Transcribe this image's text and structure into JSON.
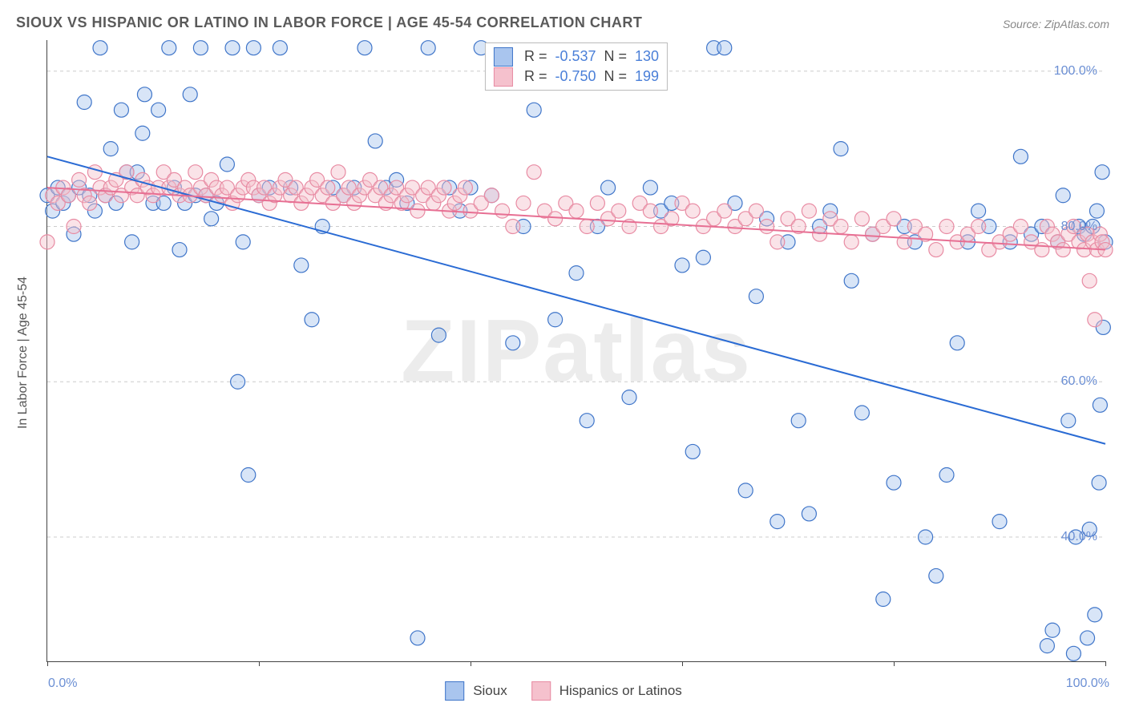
{
  "title": "SIOUX VS HISPANIC OR LATINO IN LABOR FORCE | AGE 45-54 CORRELATION CHART",
  "source_prefix": "Source: ",
  "source": "ZipAtlas.com",
  "yaxis_label": "In Labor Force | Age 45-54",
  "watermark_bold": "ZIP",
  "watermark_rest": "atlas",
  "chart": {
    "type": "scatter",
    "background_color": "#ffffff",
    "grid_color": "#cccccc",
    "grid_dash": "4,4",
    "axis_color": "#444444",
    "tick_label_color": "#6b8fd4",
    "tick_fontsize": 16,
    "title_fontsize": 18,
    "title_color": "#5a5a5a",
    "xlim": [
      0,
      100
    ],
    "ylim": [
      24,
      104
    ],
    "x_ticks": [
      0,
      20,
      40,
      60,
      80,
      100
    ],
    "x_tick_labels": [
      "0.0%",
      "",
      "",
      "",
      "",
      "100.0%"
    ],
    "y_gridlines": [
      40,
      60,
      80,
      100
    ],
    "y_tick_labels": [
      "40.0%",
      "60.0%",
      "80.0%",
      "100.0%"
    ],
    "marker_radius": 9,
    "marker_opacity": 0.45,
    "marker_stroke_width": 1.2,
    "line_width": 2,
    "series": [
      {
        "name": "Sioux",
        "fill_color": "#a9c5ee",
        "stroke_color": "#3f75c9",
        "line_color": "#2a6bd4",
        "R": "-0.537",
        "N": "130",
        "trend": {
          "x1": 0,
          "y1": 89,
          "x2": 100,
          "y2": 52
        },
        "points": [
          [
            0,
            84
          ],
          [
            0.5,
            82
          ],
          [
            1,
            85
          ],
          [
            1.5,
            83
          ],
          [
            2,
            84
          ],
          [
            2.5,
            79
          ],
          [
            3,
            85
          ],
          [
            3.5,
            96
          ],
          [
            4,
            84
          ],
          [
            4.5,
            82
          ],
          [
            5,
            103
          ],
          [
            5.5,
            84
          ],
          [
            6,
            90
          ],
          [
            6.5,
            83
          ],
          [
            7,
            95
          ],
          [
            7.5,
            87
          ],
          [
            8,
            78
          ],
          [
            8.5,
            87
          ],
          [
            9,
            92
          ],
          [
            9.2,
            97
          ],
          [
            10,
            83
          ],
          [
            10.5,
            95
          ],
          [
            11,
            83
          ],
          [
            11.5,
            103
          ],
          [
            12,
            85
          ],
          [
            12.5,
            77
          ],
          [
            13,
            83
          ],
          [
            13.5,
            97
          ],
          [
            14,
            84
          ],
          [
            14.5,
            103
          ],
          [
            15,
            84
          ],
          [
            15.5,
            81
          ],
          [
            16,
            83
          ],
          [
            17,
            88
          ],
          [
            17.5,
            103
          ],
          [
            18,
            60
          ],
          [
            18.5,
            78
          ],
          [
            19,
            48
          ],
          [
            19.5,
            103
          ],
          [
            20,
            84
          ],
          [
            21,
            85
          ],
          [
            22,
            103
          ],
          [
            23,
            85
          ],
          [
            24,
            75
          ],
          [
            25,
            68
          ],
          [
            26,
            80
          ],
          [
            27,
            85
          ],
          [
            28,
            84
          ],
          [
            29,
            85
          ],
          [
            30,
            103
          ],
          [
            31,
            91
          ],
          [
            32,
            85
          ],
          [
            33,
            86
          ],
          [
            34,
            83
          ],
          [
            35,
            27
          ],
          [
            36,
            103
          ],
          [
            37,
            66
          ],
          [
            38,
            85
          ],
          [
            39,
            82
          ],
          [
            40,
            85
          ],
          [
            41,
            103
          ],
          [
            42,
            84
          ],
          [
            44,
            65
          ],
          [
            45,
            80
          ],
          [
            46,
            95
          ],
          [
            48,
            68
          ],
          [
            50,
            74
          ],
          [
            51,
            55
          ],
          [
            52,
            80
          ],
          [
            53,
            85
          ],
          [
            55,
            58
          ],
          [
            57,
            85
          ],
          [
            58,
            82
          ],
          [
            59,
            83
          ],
          [
            60,
            75
          ],
          [
            61,
            51
          ],
          [
            62,
            76
          ],
          [
            63,
            103
          ],
          [
            64,
            103
          ],
          [
            65,
            83
          ],
          [
            66,
            46
          ],
          [
            67,
            71
          ],
          [
            68,
            81
          ],
          [
            69,
            42
          ],
          [
            70,
            78
          ],
          [
            71,
            55
          ],
          [
            72,
            43
          ],
          [
            73,
            80
          ],
          [
            74,
            82
          ],
          [
            75,
            90
          ],
          [
            76,
            73
          ],
          [
            77,
            56
          ],
          [
            78,
            79
          ],
          [
            79,
            32
          ],
          [
            80,
            47
          ],
          [
            81,
            80
          ],
          [
            82,
            78
          ],
          [
            83,
            40
          ],
          [
            84,
            35
          ],
          [
            85,
            48
          ],
          [
            86,
            65
          ],
          [
            87,
            78
          ],
          [
            88,
            82
          ],
          [
            89,
            80
          ],
          [
            90,
            42
          ],
          [
            91,
            78
          ],
          [
            92,
            89
          ],
          [
            93,
            79
          ],
          [
            94,
            80
          ],
          [
            94.5,
            26
          ],
          [
            95,
            28
          ],
          [
            95.5,
            78
          ],
          [
            96,
            84
          ],
          [
            96.5,
            55
          ],
          [
            97,
            25
          ],
          [
            97.2,
            40
          ],
          [
            97.5,
            80
          ],
          [
            98,
            79
          ],
          [
            98.3,
            27
          ],
          [
            98.5,
            41
          ],
          [
            98.8,
            80
          ],
          [
            99,
            30
          ],
          [
            99.2,
            82
          ],
          [
            99.4,
            47
          ],
          [
            99.5,
            57
          ],
          [
            99.7,
            87
          ],
          [
            99.8,
            67
          ],
          [
            100,
            78
          ]
        ]
      },
      {
        "name": "Hispanics or Latinos",
        "fill_color": "#f5c1cd",
        "stroke_color": "#e88ba3",
        "line_color": "#e76f93",
        "R": "-0.750",
        "N": "199",
        "trend": {
          "x1": 0,
          "y1": 85,
          "x2": 100,
          "y2": 77
        },
        "points": [
          [
            0,
            78
          ],
          [
            0.5,
            84
          ],
          [
            1,
            83
          ],
          [
            1.5,
            85
          ],
          [
            2,
            84
          ],
          [
            2.5,
            80
          ],
          [
            3,
            86
          ],
          [
            3.5,
            84
          ],
          [
            4,
            83
          ],
          [
            4.5,
            87
          ],
          [
            5,
            85
          ],
          [
            5.5,
            84
          ],
          [
            6,
            85
          ],
          [
            6.5,
            86
          ],
          [
            7,
            84
          ],
          [
            7.5,
            87
          ],
          [
            8,
            85
          ],
          [
            8.5,
            84
          ],
          [
            9,
            86
          ],
          [
            9.5,
            85
          ],
          [
            10,
            84
          ],
          [
            10.5,
            85
          ],
          [
            11,
            87
          ],
          [
            11.5,
            85
          ],
          [
            12,
            86
          ],
          [
            12.5,
            84
          ],
          [
            13,
            85
          ],
          [
            13.5,
            84
          ],
          [
            14,
            87
          ],
          [
            14.5,
            85
          ],
          [
            15,
            84
          ],
          [
            15.5,
            86
          ],
          [
            16,
            85
          ],
          [
            16.5,
            84
          ],
          [
            17,
            85
          ],
          [
            17.5,
            83
          ],
          [
            18,
            84
          ],
          [
            18.5,
            85
          ],
          [
            19,
            86
          ],
          [
            19.5,
            85
          ],
          [
            20,
            84
          ],
          [
            20.5,
            85
          ],
          [
            21,
            83
          ],
          [
            21.5,
            84
          ],
          [
            22,
            85
          ],
          [
            22.5,
            86
          ],
          [
            23,
            84
          ],
          [
            23.5,
            85
          ],
          [
            24,
            83
          ],
          [
            24.5,
            84
          ],
          [
            25,
            85
          ],
          [
            25.5,
            86
          ],
          [
            26,
            84
          ],
          [
            26.5,
            85
          ],
          [
            27,
            83
          ],
          [
            27.5,
            87
          ],
          [
            28,
            84
          ],
          [
            28.5,
            85
          ],
          [
            29,
            83
          ],
          [
            29.5,
            84
          ],
          [
            30,
            85
          ],
          [
            30.5,
            86
          ],
          [
            31,
            84
          ],
          [
            31.5,
            85
          ],
          [
            32,
            83
          ],
          [
            32.5,
            84
          ],
          [
            33,
            85
          ],
          [
            33.5,
            83
          ],
          [
            34,
            84
          ],
          [
            34.5,
            85
          ],
          [
            35,
            82
          ],
          [
            35.5,
            84
          ],
          [
            36,
            85
          ],
          [
            36.5,
            83
          ],
          [
            37,
            84
          ],
          [
            37.5,
            85
          ],
          [
            38,
            82
          ],
          [
            38.5,
            83
          ],
          [
            39,
            84
          ],
          [
            39.5,
            85
          ],
          [
            40,
            82
          ],
          [
            41,
            83
          ],
          [
            42,
            84
          ],
          [
            43,
            82
          ],
          [
            44,
            80
          ],
          [
            45,
            83
          ],
          [
            46,
            87
          ],
          [
            47,
            82
          ],
          [
            48,
            81
          ],
          [
            49,
            83
          ],
          [
            50,
            82
          ],
          [
            51,
            80
          ],
          [
            52,
            83
          ],
          [
            53,
            81
          ],
          [
            54,
            82
          ],
          [
            55,
            80
          ],
          [
            56,
            83
          ],
          [
            57,
            82
          ],
          [
            58,
            80
          ],
          [
            59,
            81
          ],
          [
            60,
            83
          ],
          [
            61,
            82
          ],
          [
            62,
            80
          ],
          [
            63,
            81
          ],
          [
            64,
            82
          ],
          [
            65,
            80
          ],
          [
            66,
            81
          ],
          [
            67,
            82
          ],
          [
            68,
            80
          ],
          [
            69,
            78
          ],
          [
            70,
            81
          ],
          [
            71,
            80
          ],
          [
            72,
            82
          ],
          [
            73,
            79
          ],
          [
            74,
            81
          ],
          [
            75,
            80
          ],
          [
            76,
            78
          ],
          [
            77,
            81
          ],
          [
            78,
            79
          ],
          [
            79,
            80
          ],
          [
            80,
            81
          ],
          [
            81,
            78
          ],
          [
            82,
            80
          ],
          [
            83,
            79
          ],
          [
            84,
            77
          ],
          [
            85,
            80
          ],
          [
            86,
            78
          ],
          [
            87,
            79
          ],
          [
            88,
            80
          ],
          [
            89,
            77
          ],
          [
            90,
            78
          ],
          [
            91,
            79
          ],
          [
            92,
            80
          ],
          [
            93,
            78
          ],
          [
            94,
            77
          ],
          [
            94.5,
            80
          ],
          [
            95,
            79
          ],
          [
            95.5,
            78
          ],
          [
            96,
            77
          ],
          [
            96.5,
            79
          ],
          [
            97,
            80
          ],
          [
            97.5,
            78
          ],
          [
            98,
            77
          ],
          [
            98.3,
            79
          ],
          [
            98.5,
            73
          ],
          [
            98.8,
            78
          ],
          [
            99,
            68
          ],
          [
            99.2,
            77
          ],
          [
            99.5,
            79
          ],
          [
            99.7,
            78
          ],
          [
            100,
            77
          ]
        ]
      }
    ],
    "legend_top": {
      "R_label": "R =",
      "N_label": "N ="
    },
    "legend_bottom": [
      {
        "label": "Sioux",
        "fill": "#a9c5ee",
        "stroke": "#3f75c9"
      },
      {
        "label": "Hispanics or Latinos",
        "fill": "#f5c1cd",
        "stroke": "#e88ba3"
      }
    ]
  }
}
